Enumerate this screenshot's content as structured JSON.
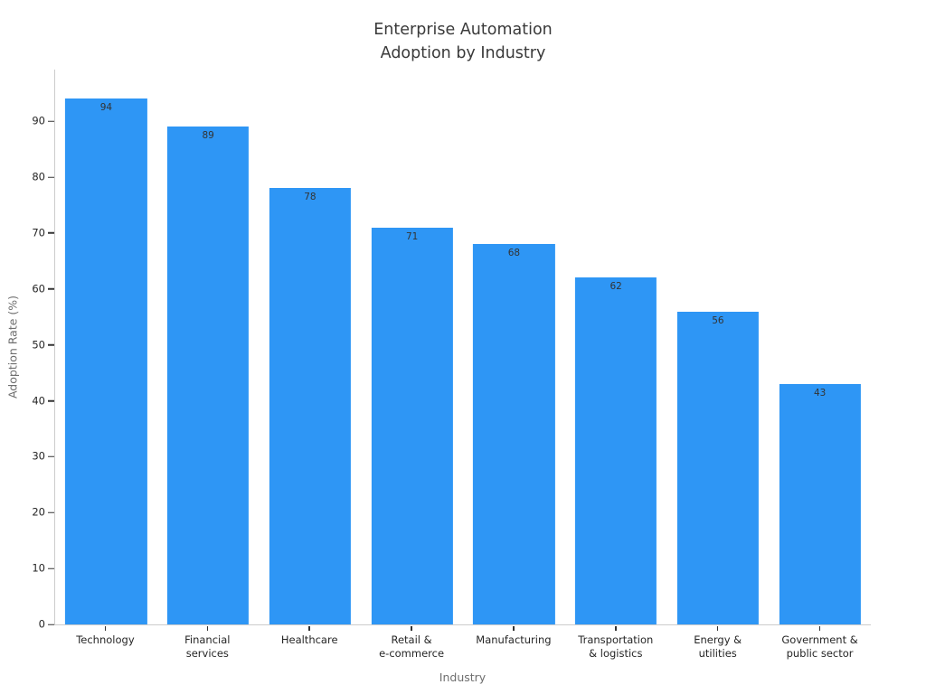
{
  "chart_data": {
    "type": "bar",
    "title": "Enterprise Automation\nAdoption by Industry",
    "xlabel": "Industry",
    "ylabel": "Adoption Rate (%)",
    "categories": [
      "Technology",
      "Financial\nservices",
      "Healthcare",
      "Retail &\ne-commerce",
      "Manufacturing",
      "Transportation\n& logistics",
      "Energy &\nutilities",
      "Government &\npublic sector"
    ],
    "values": [
      94,
      89,
      78,
      71,
      68,
      62,
      56,
      43
    ],
    "value_labels_shown": true,
    "ylim": [
      0,
      99.4
    ],
    "yticks": [
      0,
      10,
      20,
      30,
      40,
      50,
      60,
      70,
      80,
      90
    ],
    "grid": false,
    "legend": "none",
    "colors": {
      "bar": "#2e96f5",
      "value_label": "#333333",
      "tick_label": "#262626",
      "axis_title": "#6e6e6e",
      "spine": "#cccccc",
      "title": "#3a3a3a",
      "background": "#ffffff"
    }
  }
}
